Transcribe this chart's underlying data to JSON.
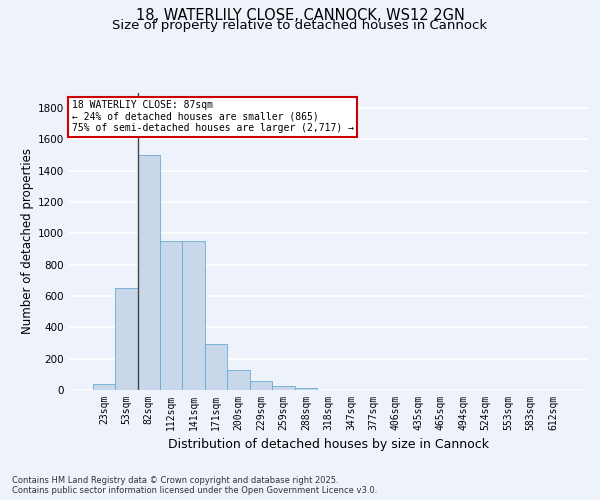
{
  "title_line1": "18, WATERLILY CLOSE, CANNOCK, WS12 2GN",
  "title_line2": "Size of property relative to detached houses in Cannock",
  "xlabel": "Distribution of detached houses by size in Cannock",
  "ylabel": "Number of detached properties",
  "categories": [
    "23sqm",
    "53sqm",
    "82sqm",
    "112sqm",
    "141sqm",
    "171sqm",
    "200sqm",
    "229sqm",
    "259sqm",
    "288sqm",
    "318sqm",
    "347sqm",
    "377sqm",
    "406sqm",
    "435sqm",
    "465sqm",
    "494sqm",
    "524sqm",
    "553sqm",
    "583sqm",
    "612sqm"
  ],
  "values": [
    40,
    650,
    1500,
    950,
    950,
    295,
    130,
    60,
    25,
    10,
    2,
    1,
    0,
    0,
    0,
    0,
    0,
    0,
    0,
    0,
    0
  ],
  "bar_color": "#c8d8ea",
  "bar_edge_color": "#6aaad4",
  "vline_x_idx": 2,
  "vline_color": "#444444",
  "ylim": [
    0,
    1900
  ],
  "yticks": [
    0,
    200,
    400,
    600,
    800,
    1000,
    1200,
    1400,
    1600,
    1800
  ],
  "annotation_text": "18 WATERLIY CLOSE: 87sqm\n← 24% of detached houses are smaller (865)\n75% of semi-detached houses are larger (2,717) →",
  "annotation_box_color": "#ffffff",
  "annotation_border_color": "#cc0000",
  "background_color": "#eef2fb",
  "grid_color": "#ffffff",
  "footer_text": "Contains HM Land Registry data © Crown copyright and database right 2025.\nContains public sector information licensed under the Open Government Licence v3.0.",
  "title_fontsize": 10.5,
  "subtitle_fontsize": 9.5,
  "axis_label_fontsize": 8.5,
  "tick_fontsize": 7,
  "footer_fontsize": 6,
  "ann_fontsize": 7
}
